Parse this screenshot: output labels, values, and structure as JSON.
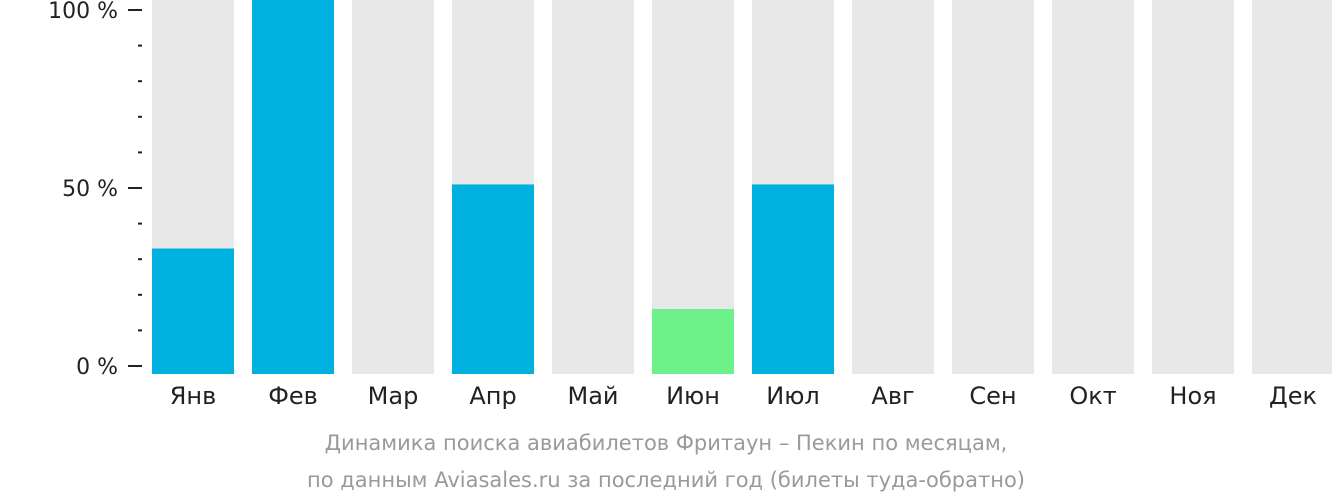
{
  "chart_data": {
    "type": "bar",
    "categories": [
      "Янв",
      "Фев",
      "Мар",
      "Апр",
      "Май",
      "Июн",
      "Июл",
      "Авг",
      "Сен",
      "Окт",
      "Ноя",
      "Дек"
    ],
    "values": [
      33,
      100,
      0,
      51,
      0,
      16,
      51,
      0,
      0,
      0,
      0,
      0
    ],
    "ylim": [
      0,
      100
    ],
    "yticks": [
      {
        "value": 0,
        "label": "0 %"
      },
      {
        "value": 50,
        "label": "50 %"
      },
      {
        "value": 100,
        "label": "100 %"
      }
    ],
    "minor_tick_step": 10,
    "highlight_index": 5,
    "colors": {
      "bar": "#00b0de",
      "highlight": "#6ef08a",
      "track": "#e8e8e8",
      "axis": "#222222"
    },
    "caption_line1": "Динамика поиска авиабилетов Фритаун – Пекин по месяцам,",
    "caption_line2": "по данным Aviasales.ru за последний год (билеты туда-обратно)"
  }
}
